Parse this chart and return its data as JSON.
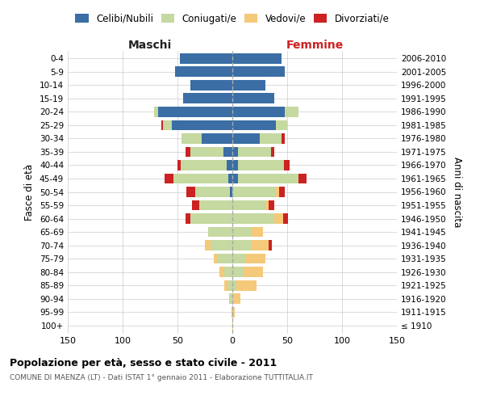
{
  "age_groups": [
    "100+",
    "95-99",
    "90-94",
    "85-89",
    "80-84",
    "75-79",
    "70-74",
    "65-69",
    "60-64",
    "55-59",
    "50-54",
    "45-49",
    "40-44",
    "35-39",
    "30-34",
    "25-29",
    "20-24",
    "15-19",
    "10-14",
    "5-9",
    "0-4"
  ],
  "birth_years": [
    "≤ 1910",
    "1911-1915",
    "1916-1920",
    "1921-1925",
    "1926-1930",
    "1931-1935",
    "1936-1940",
    "1941-1945",
    "1946-1950",
    "1951-1955",
    "1956-1960",
    "1961-1965",
    "1966-1970",
    "1971-1975",
    "1976-1980",
    "1981-1985",
    "1986-1990",
    "1991-1995",
    "1996-2000",
    "2001-2005",
    "2006-2010"
  ],
  "colors": {
    "celibi": "#3a6ea5",
    "coniugati": "#c5d9a0",
    "vedovi": "#f5c97a",
    "divorziati": "#cc2222"
  },
  "maschi": {
    "celibi": [
      0,
      0,
      0,
      0,
      0,
      0,
      0,
      0,
      0,
      0,
      2,
      4,
      5,
      8,
      28,
      55,
      68,
      45,
      38,
      52,
      48
    ],
    "coniugati": [
      0,
      1,
      2,
      4,
      7,
      14,
      20,
      22,
      38,
      30,
      32,
      50,
      42,
      30,
      18,
      8,
      3,
      0,
      0,
      0,
      0
    ],
    "vedovi": [
      0,
      0,
      1,
      3,
      5,
      3,
      5,
      0,
      0,
      0,
      0,
      0,
      0,
      0,
      0,
      0,
      0,
      0,
      0,
      0,
      0
    ],
    "divorziati": [
      0,
      0,
      0,
      0,
      0,
      0,
      0,
      0,
      5,
      7,
      8,
      8,
      3,
      5,
      0,
      2,
      0,
      0,
      0,
      0,
      0
    ]
  },
  "femmine": {
    "celibi": [
      0,
      0,
      0,
      0,
      0,
      0,
      0,
      0,
      0,
      0,
      0,
      5,
      5,
      5,
      25,
      40,
      48,
      38,
      30,
      48,
      45
    ],
    "coniugati": [
      0,
      0,
      1,
      4,
      10,
      12,
      18,
      18,
      38,
      30,
      40,
      55,
      42,
      30,
      20,
      10,
      12,
      0,
      0,
      0,
      0
    ],
    "vedovi": [
      1,
      2,
      6,
      18,
      18,
      18,
      15,
      10,
      8,
      3,
      3,
      0,
      0,
      0,
      0,
      0,
      0,
      0,
      0,
      0,
      0
    ],
    "divorziati": [
      0,
      0,
      0,
      0,
      0,
      0,
      3,
      0,
      5,
      5,
      5,
      8,
      5,
      3,
      3,
      0,
      0,
      0,
      0,
      0,
      0
    ]
  },
  "title": "Popolazione per età, sesso e stato civile - 2011",
  "subtitle": "COMUNE DI MAENZA (LT) - Dati ISTAT 1° gennaio 2011 - Elaborazione TUTTITALIA.IT",
  "xlabel_left": "Maschi",
  "xlabel_right": "Femmine",
  "ylabel_left": "Fasce di età",
  "ylabel_right": "Anni di nascita",
  "legend_labels": [
    "Celibi/Nubili",
    "Coniugati/e",
    "Vedovi/e",
    "Divorziati/e"
  ],
  "xlim": 150,
  "bg_color": "#ffffff",
  "grid_color": "#cccccc"
}
